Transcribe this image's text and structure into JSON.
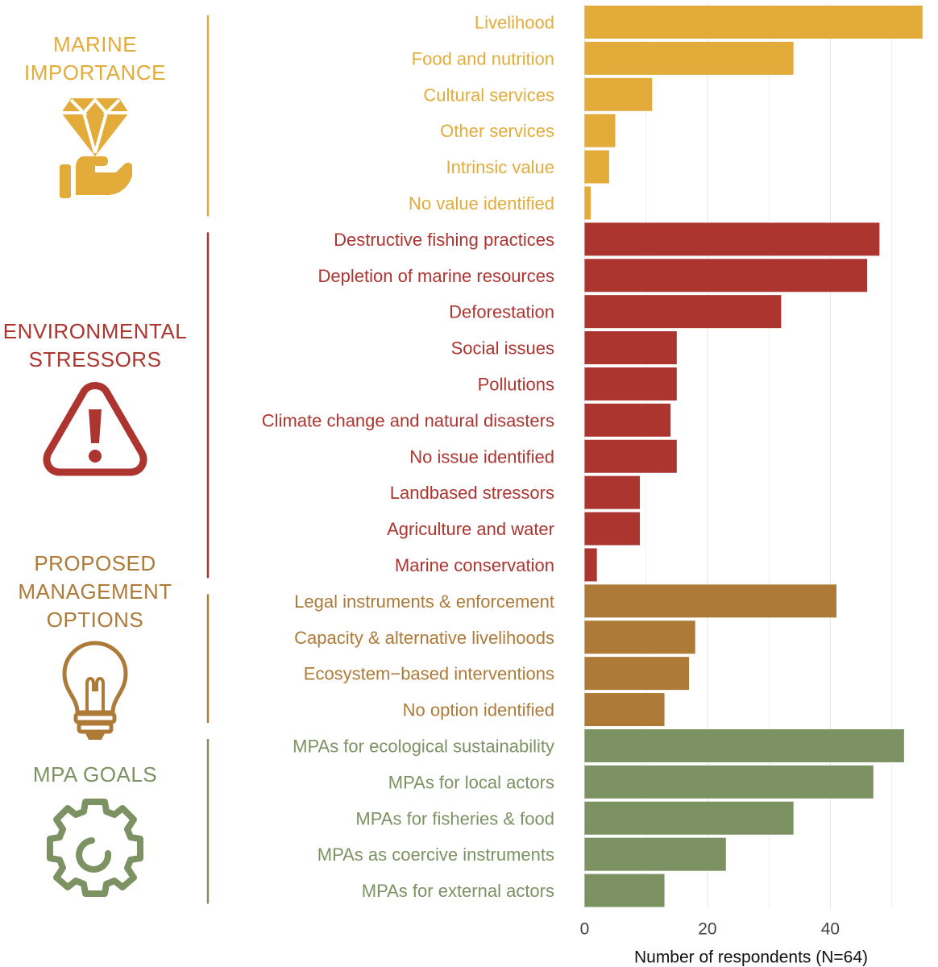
{
  "chart_data": {
    "type": "bar",
    "orientation": "horizontal",
    "xlabel": "Number of respondents (N=64)",
    "ylabel": "",
    "xlim": [
      -1.5,
      57
    ],
    "xticks": [
      0,
      20,
      40
    ],
    "grid": true,
    "legend": "none",
    "groups": [
      {
        "name": "MARINE IMPORTANCE",
        "title_lines": [
          "MARINE",
          "IMPORTANCE"
        ],
        "icon": "diamond-in-hand-icon",
        "color": "#E3AC3A",
        "categories": [
          "Livelihood",
          "Food and nutrition",
          "Cultural services",
          "Other services",
          "Intrinsic value",
          "No value identified"
        ],
        "values": [
          55,
          34,
          11,
          5,
          4,
          1
        ]
      },
      {
        "name": "ENVIRONMENTAL STRESSORS",
        "title_lines": [
          "ENVIRONMENTAL",
          "STRESSORS"
        ],
        "icon": "warning-triangle-icon",
        "color": "#AD3530",
        "categories": [
          "Destructive fishing practices",
          "Depletion of marine resources",
          "Deforestation",
          "Social issues",
          "Pollutions",
          "Climate change and natural disasters",
          "No issue identified",
          "Landbased stressors",
          "Agriculture and water",
          "Marine conservation"
        ],
        "values": [
          48,
          46,
          32,
          15,
          15,
          14,
          15,
          9,
          9,
          2
        ]
      },
      {
        "name": "PROPOSED MANAGEMENT OPTIONS",
        "title_lines": [
          "PROPOSED",
          "MANAGEMENT",
          "OPTIONS"
        ],
        "icon": "lightbulb-icon",
        "color": "#AD7A38",
        "categories": [
          "Legal instruments & enforcement",
          "Capacity & alternative livelihoods",
          "Ecosystem−based interventions",
          "No option identified"
        ],
        "values": [
          41,
          18,
          17,
          13
        ]
      },
      {
        "name": "MPA GOALS",
        "title_lines": [
          "MPA GOALS"
        ],
        "icon": "gear-icon",
        "color": "#7D9263",
        "categories": [
          "MPAs for ecological sustainability",
          "MPAs for local actors",
          "MPAs for fisheries & food",
          "MPAs as coercive instruments",
          "MPAs for external actors"
        ],
        "values": [
          52,
          47,
          34,
          23,
          13
        ]
      }
    ]
  }
}
